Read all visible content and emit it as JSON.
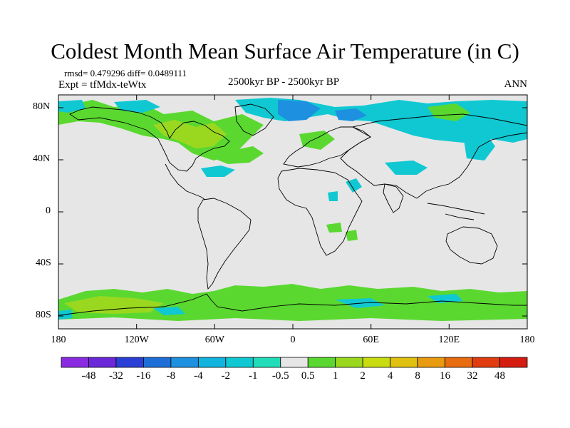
{
  "title": "Coldest Month Mean Surface Air Temperature (in C)",
  "stats": "rmsd= 0.479296 diff= 0.0489111",
  "experiment": "Expt = tfMdx-teWtx",
  "period": "2500kyr BP - 2500kyr BP",
  "season": "ANN",
  "y_axis_labels": [
    "80N",
    "40N",
    "0",
    "40S",
    "80S"
  ],
  "x_axis_labels": [
    "180",
    "120W",
    "60W",
    "0",
    "60E",
    "120E",
    "180"
  ],
  "colorbar": {
    "labels": [
      "-48",
      "-32",
      "-16",
      "-8",
      "-4",
      "-2",
      "-1",
      "-0.5",
      "0.5",
      "1",
      "2",
      "4",
      "8",
      "16",
      "32",
      "48"
    ],
    "colors": [
      "#8a2be2",
      "#6a28d8",
      "#2a3fd6",
      "#1e6ed8",
      "#1e90e0",
      "#10b4de",
      "#10c8d2",
      "#20dcb8",
      "#e6e6e6",
      "#5ad830",
      "#9ad820",
      "#c8dc10",
      "#e0c010",
      "#e89a10",
      "#e86c10",
      "#e03c10",
      "#d41c10"
    ]
  },
  "colors": {
    "ocean_land_background": "#e6e6e6",
    "negative_anomaly": "#10c8d2",
    "cool_anomaly": "#1e90e0",
    "positive_anomaly": "#5ad830",
    "warm_anomaly": "#9ad820"
  }
}
